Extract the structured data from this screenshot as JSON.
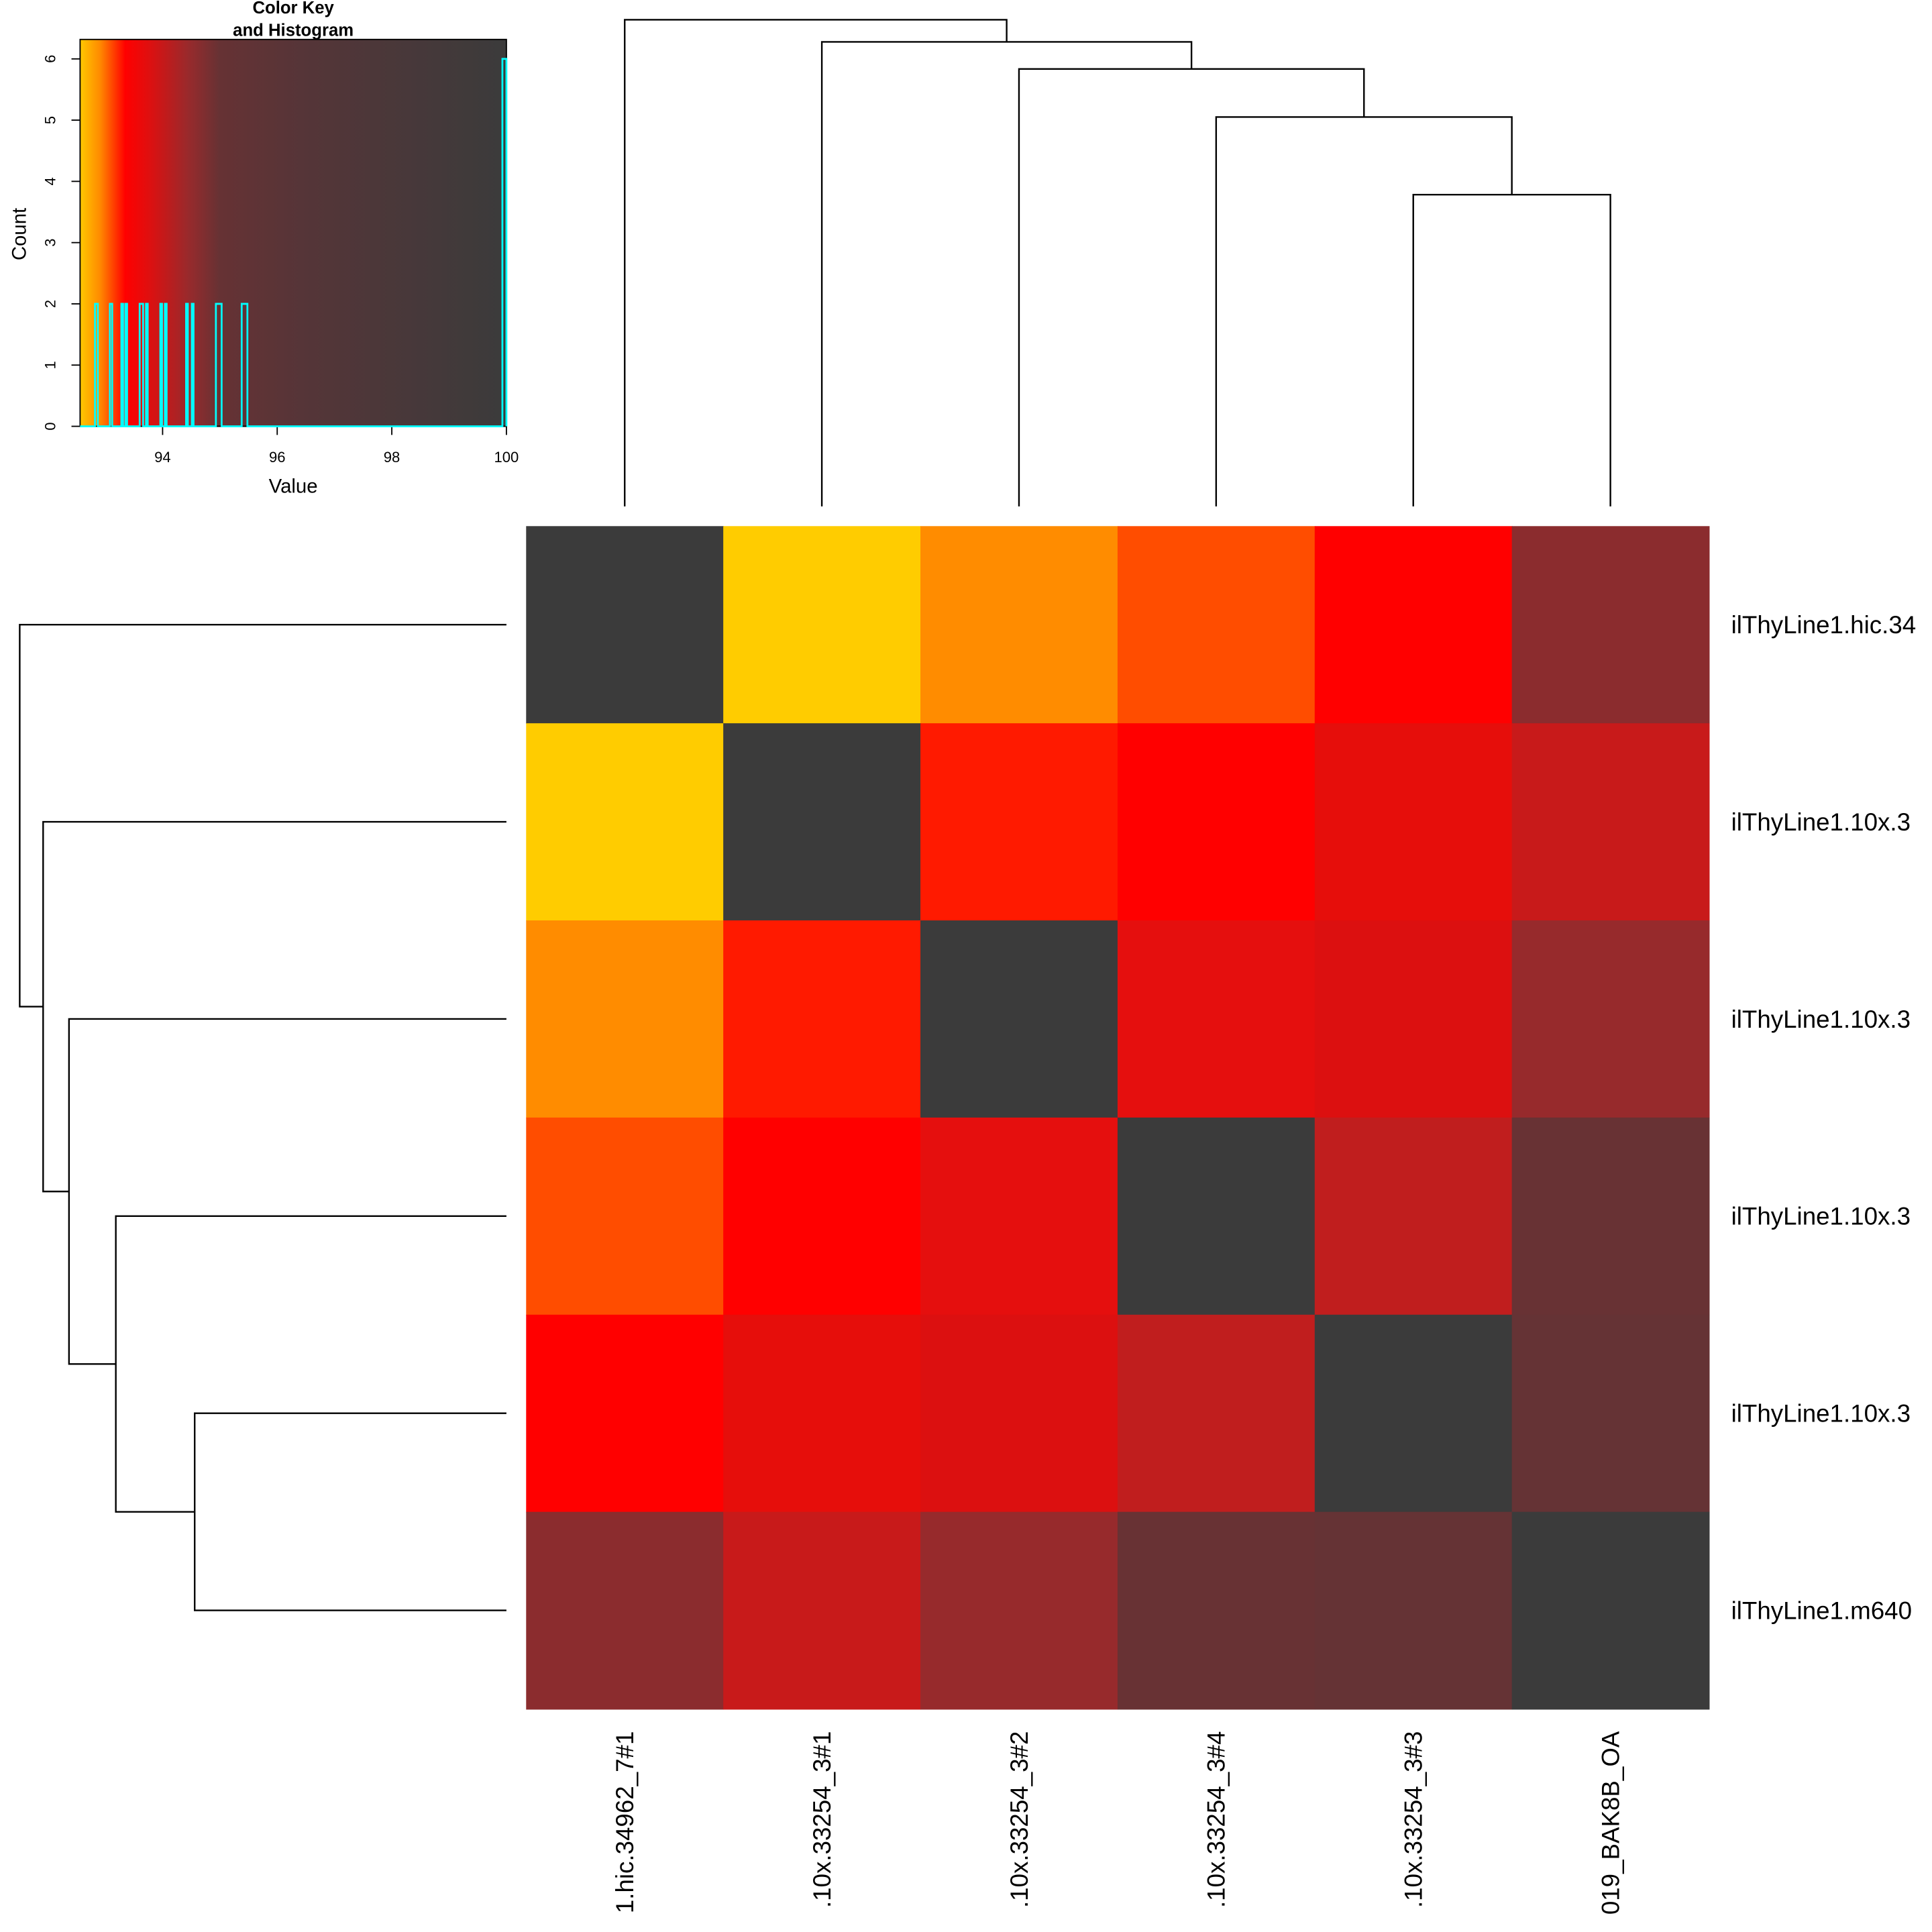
{
  "chart_data": [
    {
      "type": "heatmap",
      "row_labels": [
        "ilThyLine1.hic.34",
        "ilThyLine1.10x.3",
        "ilThyLine1.10x.3",
        "ilThyLine1.10x.3",
        "ilThyLine1.10x.3",
        "ilThyLine1.m640"
      ],
      "column_labels": [
        "1.hic.34962_7#1",
        ".10x.33254_3#1",
        ".10x.33254_3#2",
        ".10x.33254_3#4",
        ".10x.33254_3#3",
        "019_BAK8B_OA"
      ],
      "values": [
        [
          100,
          92.85,
          93.1,
          93.3,
          93.6,
          95.0
        ],
        [
          92.85,
          100,
          93.35,
          93.65,
          93.7,
          94.5
        ],
        [
          93.1,
          93.35,
          100,
          93.95,
          94.05,
          94.95
        ],
        [
          93.3,
          93.65,
          93.95,
          100,
          94.4,
          95.4
        ],
        [
          93.6,
          93.7,
          94.05,
          94.4,
          100,
          95.45
        ],
        [
          95.0,
          94.5,
          94.95,
          95.4,
          95.45,
          100
        ]
      ],
      "cell_colors": [
        [
          "#3b3b3b",
          "#ffcc00",
          "#ff8c00",
          "#ff4d00",
          "#ff0000",
          "#8b2c2e"
        ],
        [
          "#ffcc00",
          "#3b3b3b",
          "#ff1a00",
          "#ff0000",
          "#e60e0b",
          "#c81a1a"
        ],
        [
          "#ff8c00",
          "#ff1a00",
          "#3b3b3b",
          "#e50f0e",
          "#dc1010",
          "#972a2c"
        ],
        [
          "#ff4d00",
          "#ff0000",
          "#e50f0e",
          "#3b3b3b",
          "#c01e1e",
          "#683234"
        ],
        [
          "#ff0000",
          "#e60e0b",
          "#dc1010",
          "#c01e1e",
          "#3b3b3b",
          "#653335"
        ],
        [
          "#8b2c2e",
          "#c81a1a",
          "#972a2c",
          "#683234",
          "#653335",
          "#3b3b3b"
        ]
      ],
      "row_dendrogram": "((1),((2),((3),((4),((5),(6))))))",
      "column_dendrogram": "((1),((2),((3),((4),((5),(6))))))"
    },
    {
      "type": "histogram",
      "title": "Color Key\nand Histogram",
      "title_lines": [
        "Color Key",
        "and Histogram"
      ],
      "xlabel": "Value",
      "ylabel": "Count",
      "xlim": [
        92.56,
        100
      ],
      "ylim": [
        0,
        6.3
      ],
      "xticks": [
        "94",
        "96",
        "98",
        "100"
      ],
      "xtick_values": [
        94,
        96,
        98,
        100
      ],
      "yticks": [
        "0",
        "1",
        "2",
        "3",
        "4",
        "5",
        "6"
      ],
      "line_color": "#00ffff",
      "color_scale": [
        {
          "value": 92.56,
          "color": "#ffc800"
        },
        {
          "value": 92.9,
          "color": "#ff8c00"
        },
        {
          "value": 93.35,
          "color": "#ff0000"
        },
        {
          "value": 93.75,
          "color": "#e00f0f"
        },
        {
          "value": 94.45,
          "color": "#982a2c"
        },
        {
          "value": 95.0,
          "color": "#663234"
        },
        {
          "value": 96.5,
          "color": "#553538"
        },
        {
          "value": 100,
          "color": "#3b3b3b"
        }
      ],
      "bins": [
        {
          "from": 92.82,
          "to": 92.87,
          "count": 2
        },
        {
          "from": 93.08,
          "to": 93.12,
          "count": 2
        },
        {
          "from": 93.28,
          "to": 93.31,
          "count": 2
        },
        {
          "from": 93.35,
          "to": 93.38,
          "count": 2
        },
        {
          "from": 93.6,
          "to": 93.66,
          "count": 2
        },
        {
          "from": 93.71,
          "to": 93.74,
          "count": 2
        },
        {
          "from": 93.96,
          "to": 93.99,
          "count": 2
        },
        {
          "from": 94.04,
          "to": 94.07,
          "count": 2
        },
        {
          "from": 94.41,
          "to": 94.44,
          "count": 2
        },
        {
          "from": 94.51,
          "to": 94.54,
          "count": 2
        },
        {
          "from": 94.93,
          "to": 95.03,
          "count": 2
        },
        {
          "from": 95.38,
          "to": 95.48,
          "count": 2
        },
        {
          "from": 99.93,
          "to": 100,
          "count": 6
        }
      ]
    }
  ]
}
